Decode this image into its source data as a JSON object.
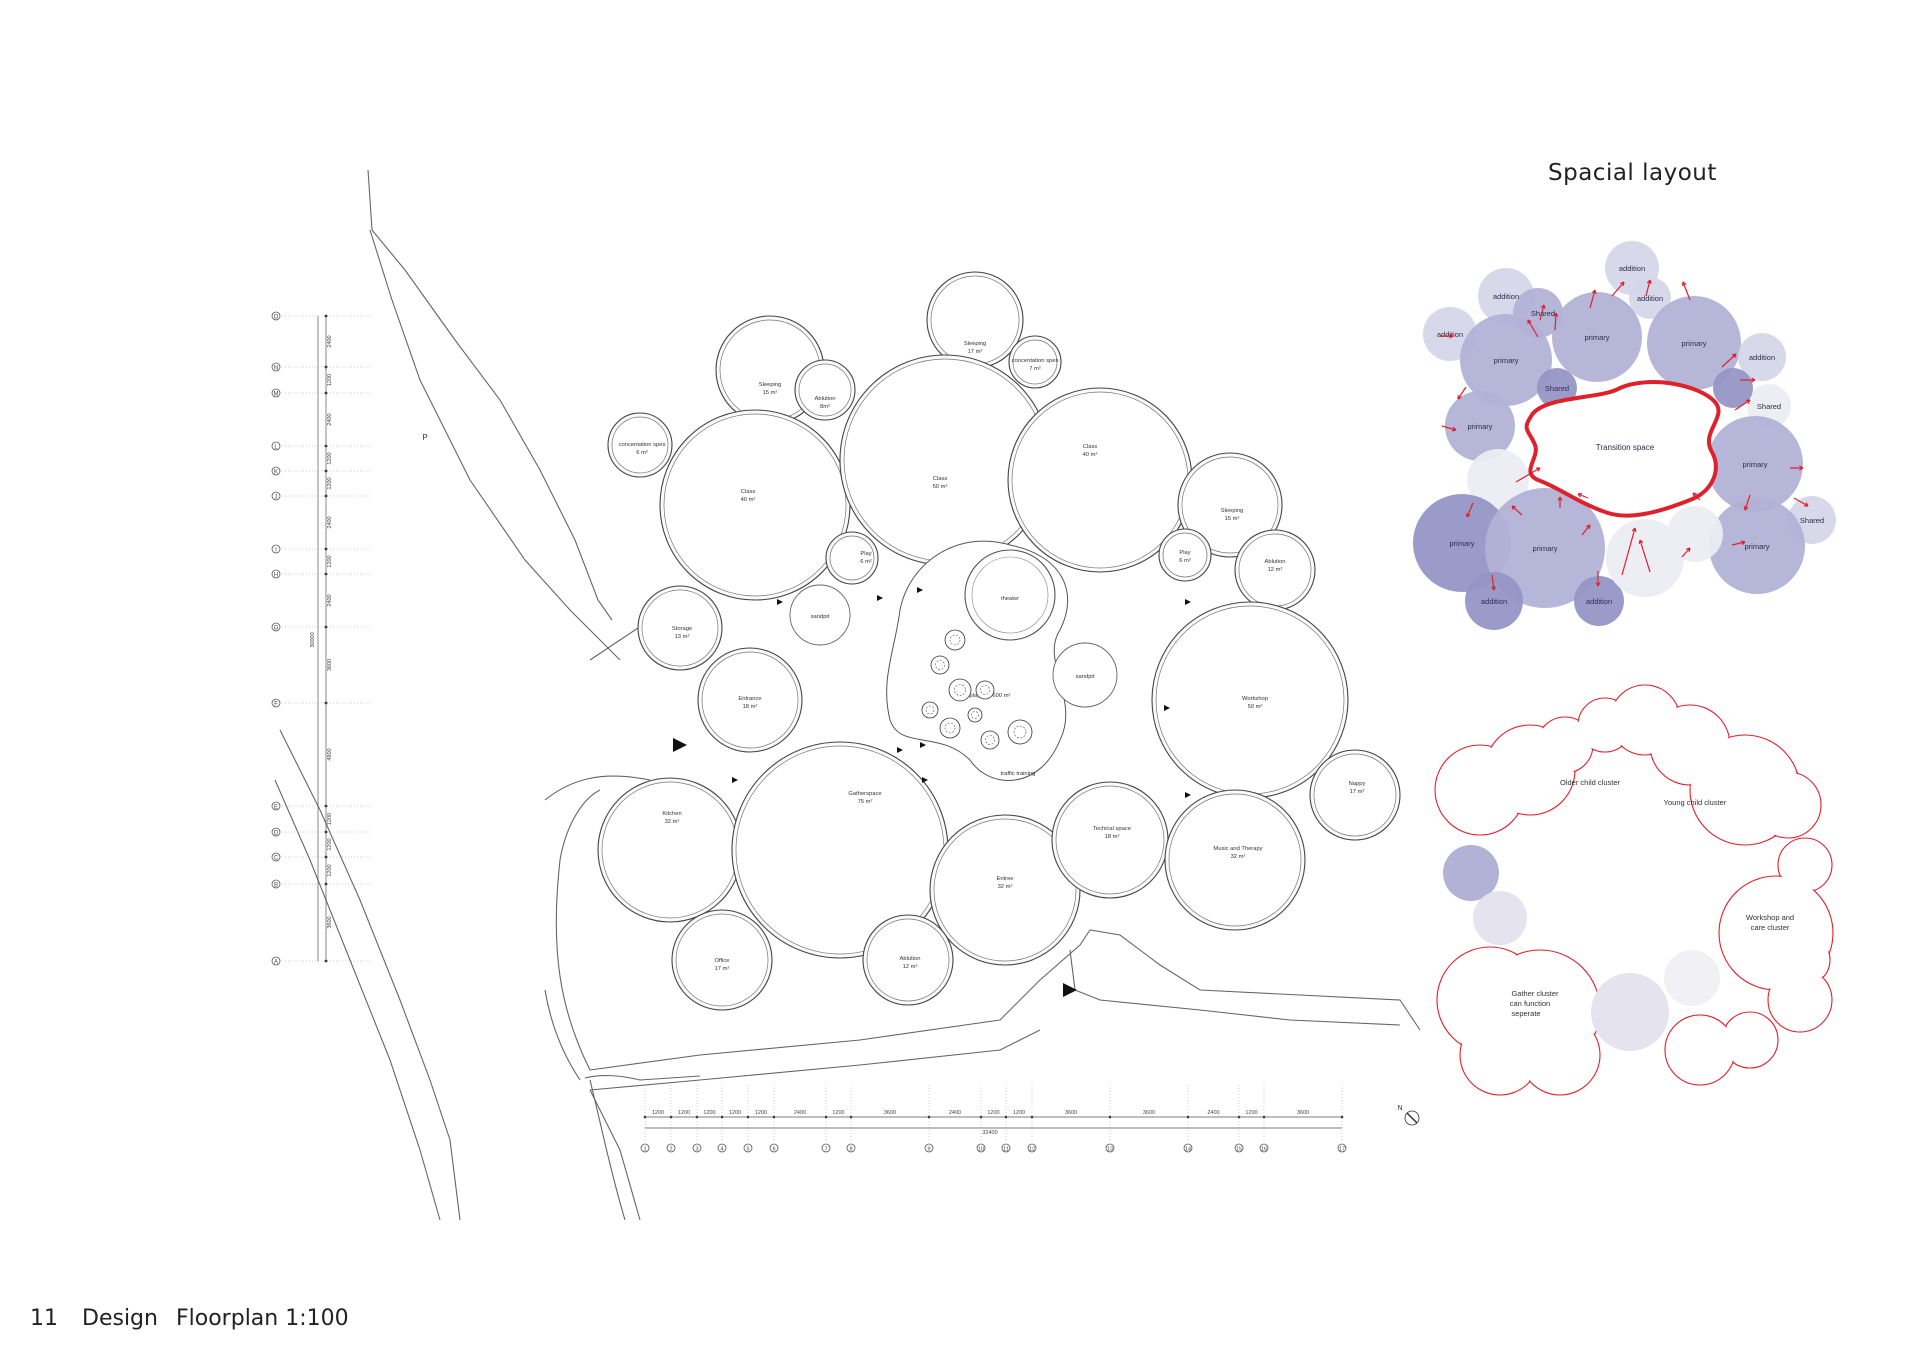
{
  "footer": {
    "page_number": "11",
    "section": "Design",
    "subtitle": "Floorplan 1:100"
  },
  "spatial_layout": {
    "title": "Spacial layout",
    "circles": [
      {
        "label": "addition",
        "shade": "light"
      },
      {
        "label": "addition",
        "shade": "light"
      },
      {
        "label": "Shared",
        "shade": "mid"
      },
      {
        "label": "addition",
        "shade": "light"
      },
      {
        "label": "addition",
        "shade": "light"
      },
      {
        "label": "primary",
        "shade": "mid"
      },
      {
        "label": "primary",
        "shade": "mid"
      },
      {
        "label": "primary",
        "shade": "mid"
      },
      {
        "label": "Shared",
        "shade": "dark"
      },
      {
        "label": "addition",
        "shade": "light"
      },
      {
        "label": "addition",
        "shade": "light"
      },
      {
        "label": "primary",
        "shade": "mid"
      },
      {
        "label": "primary",
        "shade": "mid"
      },
      {
        "label": "Shared",
        "shade": "light"
      },
      {
        "label": "primary",
        "shade": "dark"
      },
      {
        "label": "primary",
        "shade": "mid"
      },
      {
        "label": "primary",
        "shade": "mid"
      },
      {
        "label": "addition",
        "shade": "dark"
      },
      {
        "label": "addition",
        "shade": "dark"
      }
    ],
    "transition_label": "Transition space",
    "colors": {
      "dark": "#9696c6",
      "mid": "#b1b2d6",
      "light": "#d6d6ea",
      "faint": "#ececf3",
      "arrow": "#e0202a"
    }
  },
  "cluster_diagram": {
    "labels": [
      "Older child cluster",
      "Young child cluster",
      "Workshop and care cluster",
      "Gather cluster can function seperate"
    ]
  },
  "floorplan": {
    "rooms": [
      {
        "name": "Sleeping",
        "area": "15 m²"
      },
      {
        "name": "Ablution",
        "area": "8m²"
      },
      {
        "name": "Sleeping",
        "area": "17 m²"
      },
      {
        "name": "concentation spes",
        "area": "7 m²"
      },
      {
        "name": "concentation spes",
        "area": "6 m²"
      },
      {
        "name": "Class",
        "area": "40 m²"
      },
      {
        "name": "Class",
        "area": "50 m²"
      },
      {
        "name": "Class",
        "area": "40 m²"
      },
      {
        "name": "Sleeping",
        "area": "15 m²"
      },
      {
        "name": "Play",
        "area": "6 m²"
      },
      {
        "name": "Play",
        "area": "6 m²"
      },
      {
        "name": "Ablution",
        "area": "12 m²"
      },
      {
        "name": "Storage",
        "area": "13 m²"
      },
      {
        "name": "Entrance",
        "area": "18 m²"
      },
      {
        "name": "Workshop",
        "area": "50 m²"
      },
      {
        "name": "Kitchen",
        "area": "32 m²"
      },
      {
        "name": "Gatherspace",
        "area": "75 m²"
      },
      {
        "name": "Entree",
        "area": "32 m²"
      },
      {
        "name": "Techical space",
        "area": "18 m²"
      },
      {
        "name": "Music and Therapy",
        "area": "32 m²"
      },
      {
        "name": "Nappy",
        "area": "17 m²"
      },
      {
        "name": "Office",
        "area": "17 m²"
      },
      {
        "name": "Ablution",
        "area": "12 m²"
      }
    ],
    "other_labels": {
      "theater": "theater",
      "sandpit": "sandpit",
      "playfield": "playfield 600 m²",
      "traffic": "traffic training",
      "parking": "P"
    },
    "grid_rows": [
      "O",
      "N",
      "M",
      "L",
      "K",
      "J",
      "I",
      "H",
      "G",
      "F",
      "E",
      "D",
      "C",
      "B",
      "A"
    ],
    "row_dims": [
      "2400",
      "1200",
      "2400",
      "1200",
      "1200",
      "2400",
      "1200",
      "2400",
      "3600",
      "4800",
      "1200",
      "1200",
      "1200",
      "3600"
    ],
    "row_total": "30000",
    "grid_cols": [
      "1",
      "2",
      "3",
      "4",
      "5",
      "6",
      "7",
      "8",
      "9",
      "10",
      "11",
      "12",
      "13",
      "14",
      "15",
      "16",
      "17"
    ],
    "col_dims": [
      "1200",
      "1200",
      "1200",
      "1200",
      "1200",
      "2400",
      "1200",
      "3600",
      "2400",
      "1200",
      "1200",
      "3600",
      "3600",
      "2400",
      "1200",
      "3600"
    ],
    "col_total": "32400",
    "north": "N"
  }
}
